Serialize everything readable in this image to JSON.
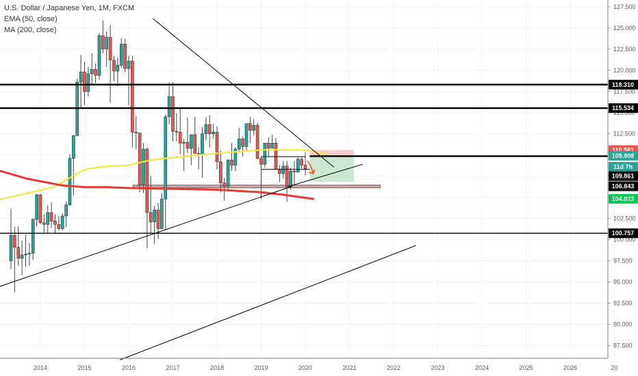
{
  "legend": {
    "symbol_line": "U.S. Dollar / Japanese Yen, 1M, FXCM",
    "ema_label": "EMA (50, close)",
    "ma_label": "MA (200, close)"
  },
  "colors": {
    "up": "#26a69a",
    "down": "#ef5350",
    "ema": "#f5e642",
    "ma": "#e53935",
    "level_line": "#000000",
    "trend_line": "#000000",
    "stop_zone": "#f7c8cc",
    "target_zone": "#c8e6c9",
    "arrow": "#e65100"
  },
  "chart_data": {
    "type": "candlestick",
    "y_axis": {
      "min": 86.0,
      "max": 128.3,
      "tick_labels": [
        "127.500",
        "125.000",
        "122.500",
        "120.000",
        "117.500",
        "115.000",
        "112.500",
        "110.000",
        "107.500",
        "105.000",
        "102.500",
        "100.000",
        "97.500",
        "95.000",
        "92.500",
        "90.000",
        "87.500"
      ]
    },
    "x_axis": {
      "tick_labels": [
        "2014",
        "2015",
        "2016",
        "2017",
        "2018",
        "2019",
        "2020",
        "2021",
        "2022",
        "2023",
        "2024",
        "2025",
        "2026",
        "20"
      ]
    },
    "candles": [
      {
        "date": "2013-05",
        "o": 97.5,
        "h": 103.7,
        "l": 96.5,
        "c": 100.5
      },
      {
        "date": "2013-06",
        "o": 100.5,
        "h": 101.5,
        "l": 93.8,
        "c": 99.1
      },
      {
        "date": "2013-07",
        "o": 99.1,
        "h": 101.6,
        "l": 96.9,
        "c": 97.8
      },
      {
        "date": "2013-08",
        "o": 97.8,
        "h": 99.9,
        "l": 95.8,
        "c": 98.2
      },
      {
        "date": "2013-09",
        "o": 98.2,
        "h": 100.6,
        "l": 96.8,
        "c": 98.3
      },
      {
        "date": "2013-10",
        "o": 98.3,
        "h": 99.6,
        "l": 96.9,
        "c": 98.4
      },
      {
        "date": "2013-11",
        "o": 98.4,
        "h": 102.5,
        "l": 97.6,
        "c": 102.4
      },
      {
        "date": "2013-12",
        "o": 102.4,
        "h": 105.4,
        "l": 101.6,
        "c": 105.3
      },
      {
        "date": "2014-01",
        "o": 105.3,
        "h": 105.4,
        "l": 101.8,
        "c": 102.0
      },
      {
        "date": "2014-02",
        "o": 102.0,
        "h": 103.0,
        "l": 100.8,
        "c": 101.8
      },
      {
        "date": "2014-03",
        "o": 101.8,
        "h": 104.1,
        "l": 100.8,
        "c": 103.2
      },
      {
        "date": "2014-04",
        "o": 103.2,
        "h": 104.4,
        "l": 101.4,
        "c": 102.2
      },
      {
        "date": "2014-05",
        "o": 102.2,
        "h": 103.0,
        "l": 100.8,
        "c": 101.8
      },
      {
        "date": "2014-06",
        "o": 101.8,
        "h": 102.8,
        "l": 101.1,
        "c": 101.3
      },
      {
        "date": "2014-07",
        "o": 101.3,
        "h": 103.1,
        "l": 101.1,
        "c": 102.8
      },
      {
        "date": "2014-08",
        "o": 102.8,
        "h": 104.5,
        "l": 101.5,
        "c": 104.1
      },
      {
        "date": "2014-09",
        "o": 104.1,
        "h": 110.1,
        "l": 104.0,
        "c": 109.6
      },
      {
        "date": "2014-10",
        "o": 109.6,
        "h": 112.3,
        "l": 105.2,
        "c": 112.3
      },
      {
        "date": "2014-11",
        "o": 112.3,
        "h": 119.0,
        "l": 112.2,
        "c": 118.6
      },
      {
        "date": "2014-12",
        "o": 118.6,
        "h": 121.8,
        "l": 115.6,
        "c": 119.8
      },
      {
        "date": "2015-01",
        "o": 119.8,
        "h": 121.0,
        "l": 115.9,
        "c": 117.5
      },
      {
        "date": "2015-02",
        "o": 117.5,
        "h": 120.4,
        "l": 116.9,
        "c": 119.6
      },
      {
        "date": "2015-03",
        "o": 119.6,
        "h": 122.0,
        "l": 118.3,
        "c": 120.1
      },
      {
        "date": "2015-04",
        "o": 120.1,
        "h": 120.8,
        "l": 118.5,
        "c": 119.4
      },
      {
        "date": "2015-05",
        "o": 119.4,
        "h": 124.4,
        "l": 118.9,
        "c": 124.1
      },
      {
        "date": "2015-06",
        "o": 124.1,
        "h": 125.9,
        "l": 122.0,
        "c": 122.5
      },
      {
        "date": "2015-07",
        "o": 122.5,
        "h": 124.6,
        "l": 120.4,
        "c": 123.9
      },
      {
        "date": "2015-08",
        "o": 123.9,
        "h": 125.3,
        "l": 116.2,
        "c": 121.2
      },
      {
        "date": "2015-09",
        "o": 121.2,
        "h": 121.7,
        "l": 118.7,
        "c": 119.9
      },
      {
        "date": "2015-10",
        "o": 119.9,
        "h": 121.5,
        "l": 118.1,
        "c": 120.6
      },
      {
        "date": "2015-11",
        "o": 120.6,
        "h": 123.8,
        "l": 120.3,
        "c": 123.1
      },
      {
        "date": "2015-12",
        "o": 123.1,
        "h": 123.7,
        "l": 119.8,
        "c": 120.2
      },
      {
        "date": "2016-01",
        "o": 120.2,
        "h": 121.7,
        "l": 115.9,
        "c": 121.1
      },
      {
        "date": "2016-02",
        "o": 121.1,
        "h": 121.7,
        "l": 110.9,
        "c": 112.7
      },
      {
        "date": "2016-03",
        "o": 112.7,
        "h": 114.6,
        "l": 110.7,
        "c": 112.6
      },
      {
        "date": "2016-04",
        "o": 112.6,
        "h": 112.6,
        "l": 105.6,
        "c": 106.5
      },
      {
        "date": "2016-05",
        "o": 106.5,
        "h": 111.4,
        "l": 105.5,
        "c": 110.7
      },
      {
        "date": "2016-06",
        "o": 110.7,
        "h": 110.9,
        "l": 99.0,
        "c": 103.2
      },
      {
        "date": "2016-07",
        "o": 103.2,
        "h": 107.5,
        "l": 100.7,
        "c": 102.1
      },
      {
        "date": "2016-08",
        "o": 102.1,
        "h": 104.0,
        "l": 99.5,
        "c": 103.5
      },
      {
        "date": "2016-09",
        "o": 103.5,
        "h": 104.3,
        "l": 100.1,
        "c": 101.3
      },
      {
        "date": "2016-10",
        "o": 101.3,
        "h": 105.5,
        "l": 101.2,
        "c": 104.8
      },
      {
        "date": "2016-11",
        "o": 104.8,
        "h": 114.8,
        "l": 101.2,
        "c": 114.5
      },
      {
        "date": "2016-12",
        "o": 114.5,
        "h": 118.6,
        "l": 113.6,
        "c": 116.9
      },
      {
        "date": "2017-01",
        "o": 116.9,
        "h": 118.6,
        "l": 111.6,
        "c": 112.8
      },
      {
        "date": "2017-02",
        "o": 112.8,
        "h": 114.9,
        "l": 111.6,
        "c": 112.7
      },
      {
        "date": "2017-03",
        "o": 112.7,
        "h": 115.5,
        "l": 110.1,
        "c": 111.4
      },
      {
        "date": "2017-04",
        "o": 111.4,
        "h": 111.9,
        "l": 108.1,
        "c": 111.5
      },
      {
        "date": "2017-05",
        "o": 111.5,
        "h": 114.4,
        "l": 110.2,
        "c": 110.8
      },
      {
        "date": "2017-06",
        "o": 110.8,
        "h": 112.4,
        "l": 108.8,
        "c": 112.4
      },
      {
        "date": "2017-07",
        "o": 112.4,
        "h": 114.5,
        "l": 110.1,
        "c": 110.2
      },
      {
        "date": "2017-08",
        "o": 110.2,
        "h": 110.9,
        "l": 108.3,
        "c": 110.0
      },
      {
        "date": "2017-09",
        "o": 110.0,
        "h": 113.3,
        "l": 107.3,
        "c": 112.5
      },
      {
        "date": "2017-10",
        "o": 112.5,
        "h": 114.5,
        "l": 111.7,
        "c": 113.6
      },
      {
        "date": "2017-11",
        "o": 113.6,
        "h": 114.7,
        "l": 110.9,
        "c": 112.5
      },
      {
        "date": "2017-12",
        "o": 112.5,
        "h": 113.7,
        "l": 111.9,
        "c": 112.7
      },
      {
        "date": "2018-01",
        "o": 112.7,
        "h": 113.4,
        "l": 108.3,
        "c": 109.2
      },
      {
        "date": "2018-02",
        "o": 109.2,
        "h": 110.5,
        "l": 105.6,
        "c": 106.7
      },
      {
        "date": "2018-03",
        "o": 106.7,
        "h": 107.3,
        "l": 104.6,
        "c": 106.3
      },
      {
        "date": "2018-04",
        "o": 106.3,
        "h": 109.5,
        "l": 105.7,
        "c": 109.4
      },
      {
        "date": "2018-05",
        "o": 109.4,
        "h": 111.4,
        "l": 108.1,
        "c": 108.8
      },
      {
        "date": "2018-06",
        "o": 108.8,
        "h": 110.9,
        "l": 108.1,
        "c": 110.7
      },
      {
        "date": "2018-07",
        "o": 110.7,
        "h": 113.2,
        "l": 110.3,
        "c": 111.9
      },
      {
        "date": "2018-08",
        "o": 111.9,
        "h": 112.2,
        "l": 109.8,
        "c": 111.0
      },
      {
        "date": "2018-09",
        "o": 111.0,
        "h": 113.7,
        "l": 110.4,
        "c": 113.7
      },
      {
        "date": "2018-10",
        "o": 113.7,
        "h": 114.5,
        "l": 111.4,
        "c": 112.9
      },
      {
        "date": "2018-11",
        "o": 112.9,
        "h": 114.2,
        "l": 112.3,
        "c": 113.5
      },
      {
        "date": "2018-12",
        "o": 113.5,
        "h": 113.8,
        "l": 109.5,
        "c": 109.6
      },
      {
        "date": "2019-01",
        "o": 109.6,
        "h": 109.8,
        "l": 104.8,
        "c": 108.9
      },
      {
        "date": "2019-02",
        "o": 108.9,
        "h": 111.4,
        "l": 108.5,
        "c": 111.4
      },
      {
        "date": "2019-03",
        "o": 111.4,
        "h": 112.1,
        "l": 109.8,
        "c": 110.8
      },
      {
        "date": "2019-04",
        "o": 110.8,
        "h": 112.4,
        "l": 110.8,
        "c": 111.4
      },
      {
        "date": "2019-05",
        "o": 111.4,
        "h": 112.0,
        "l": 108.3,
        "c": 108.3
      },
      {
        "date": "2019-06",
        "o": 108.3,
        "h": 108.8,
        "l": 106.8,
        "c": 107.8
      },
      {
        "date": "2019-07",
        "o": 107.8,
        "h": 109.3,
        "l": 107.2,
        "c": 108.7
      },
      {
        "date": "2019-08",
        "o": 108.7,
        "h": 109.3,
        "l": 104.5,
        "c": 106.3
      },
      {
        "date": "2019-09",
        "o": 106.3,
        "h": 108.5,
        "l": 105.9,
        "c": 108.1
      },
      {
        "date": "2019-10",
        "o": 108.1,
        "h": 109.3,
        "l": 106.5,
        "c": 108.0
      },
      {
        "date": "2019-11",
        "o": 108.0,
        "h": 109.7,
        "l": 107.9,
        "c": 109.5
      },
      {
        "date": "2019-12",
        "o": 109.5,
        "h": 109.7,
        "l": 108.4,
        "c": 108.8
      },
      {
        "date": "2020-01",
        "o": 108.8,
        "h": 110.3,
        "l": 107.6,
        "c": 108.4
      }
    ],
    "ema_50": [
      [
        -1.3,
        104.3
      ],
      [
        0.3,
        106.2
      ],
      [
        1.0,
        108.3
      ],
      [
        1.4,
        108.6
      ],
      [
        2.0,
        108.8
      ],
      [
        2.5,
        109.4
      ],
      [
        3.0,
        109.7
      ],
      [
        4.0,
        110.2
      ],
      [
        5.0,
        110.6
      ],
      [
        6.0,
        110.6
      ],
      [
        6.5,
        110.1
      ]
    ],
    "ma_200": [
      [
        -1.7,
        109.2
      ],
      [
        -0.9,
        108.1
      ],
      [
        -0.3,
        107.2
      ],
      [
        0.5,
        106.4
      ],
      [
        1.0,
        106.2
      ],
      [
        1.5,
        106.2
      ],
      [
        2.0,
        106.1
      ],
      [
        3.0,
        106.0
      ],
      [
        4.0,
        105.9
      ],
      [
        5.0,
        105.6
      ],
      [
        5.5,
        105.3
      ],
      [
        6.2,
        104.8
      ]
    ],
    "horizontal_levels": [
      118.31,
      115.534,
      109.861,
      100.757
    ],
    "price_badges": [
      {
        "label": "127.500",
        "value": 127.5
      },
      {
        "label": "118.310",
        "value": 118.31,
        "style": "black"
      },
      {
        "label": "115.534",
        "value": 115.534,
        "style": "black"
      },
      {
        "label": "110.581",
        "value": 110.581,
        "style": "red"
      },
      {
        "label": "109.908",
        "value": 109.908,
        "style": "teal"
      },
      {
        "label": "11d 7h",
        "value": 108.6,
        "style": "teal"
      },
      {
        "label": "109.861",
        "value": 107.5,
        "style": "black"
      },
      {
        "label": "106.843",
        "value": 106.3,
        "style": "black"
      },
      {
        "label": "104.823",
        "value": 104.823,
        "style": "green"
      },
      {
        "label": "100.757",
        "value": 100.757,
        "style": "black"
      }
    ],
    "trend_lines": [
      {
        "x1": 2.55,
        "y1": 126.1,
        "x2": 6.65,
        "y2": 108.55
      },
      {
        "x1": -1.8,
        "y1": 92.9,
        "x2": 5.7,
        "y2": 106.3
      },
      {
        "x1": 5.6,
        "y1": 106.25,
        "x2": 7.3,
        "y2": 108.9
      },
      {
        "x1": 1.8,
        "y1": 85.8,
        "x2": 8.5,
        "y2": 99.3
      }
    ],
    "position_tool": {
      "x_start": 6.1,
      "x_end": 7.1,
      "entry": 109.908,
      "stop": 110.581,
      "target": 106.843
    },
    "support_zone": {
      "x_start": 2.1,
      "x_end": 7.7,
      "y_low": 106.12,
      "y_high": 106.44
    },
    "range_box_lines": [
      {
        "x1": 5.0,
        "x2": 6.0,
        "y": 109.8
      },
      {
        "x1": 5.0,
        "x2": 6.1,
        "y": 108.3
      }
    ]
  }
}
